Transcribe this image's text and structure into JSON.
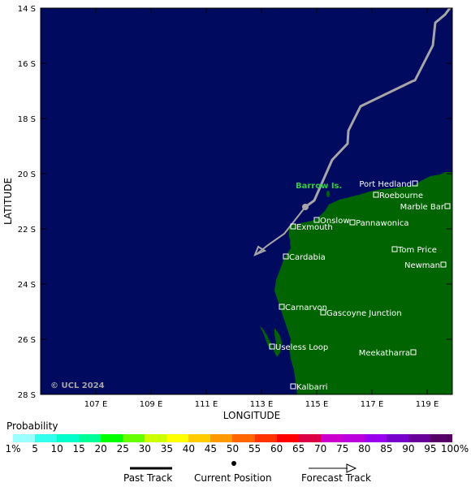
{
  "axes": {
    "lon_ticks": [
      "107 E",
      "109 E",
      "111 E",
      "113 E",
      "115 E",
      "117 E",
      "119 E"
    ],
    "lat_ticks": [
      "14 S",
      "16 S",
      "18 S",
      "20 S",
      "22 S",
      "24 S",
      "26 S",
      "28 S"
    ],
    "xlabel": "LONGITUDE",
    "ylabel": "LATITUDE"
  },
  "colors": {
    "ocean": "#000a5e",
    "land": "#006400",
    "track": "#a6a6a6",
    "island_label": "#2ecc40"
  },
  "map": {
    "copyright": "© UCL 2024",
    "island_label": "Barrow Is.",
    "places": [
      {
        "name": "Port Hedland"
      },
      {
        "name": "Roebourne"
      },
      {
        "name": "Marble Bar"
      },
      {
        "name": "Onslow"
      },
      {
        "name": "Pannawonica"
      },
      {
        "name": "Exmouth"
      },
      {
        "name": "Tom Price"
      },
      {
        "name": "Newman"
      },
      {
        "name": "Cardabia"
      },
      {
        "name": "Carnarvon"
      },
      {
        "name": "Gascoyne Junction"
      },
      {
        "name": "Useless Loop"
      },
      {
        "name": "Meekatharra"
      },
      {
        "name": "Kalbarri"
      }
    ]
  },
  "legend": {
    "title": "Probability",
    "labels": [
      "1%",
      "5",
      "10",
      "15",
      "20",
      "25",
      "30",
      "35",
      "40",
      "45",
      "50",
      "55",
      "60",
      "65",
      "70",
      "75",
      "80",
      "85",
      "90",
      "95",
      "100%"
    ],
    "colors": [
      "#99ffff",
      "#33ffee",
      "#00ffcc",
      "#00ff99",
      "#00ff00",
      "#66ff00",
      "#ccff00",
      "#ffff00",
      "#ffcc00",
      "#ff9900",
      "#ff6600",
      "#ff3300",
      "#ff0000",
      "#dd0044",
      "#cc00cc",
      "#bb00dd",
      "#9900ee",
      "#7700cc",
      "#660099",
      "#550066"
    ],
    "past_track": "Past Track",
    "current_position": "Current Position",
    "forecast_track": "Forecast Track"
  }
}
